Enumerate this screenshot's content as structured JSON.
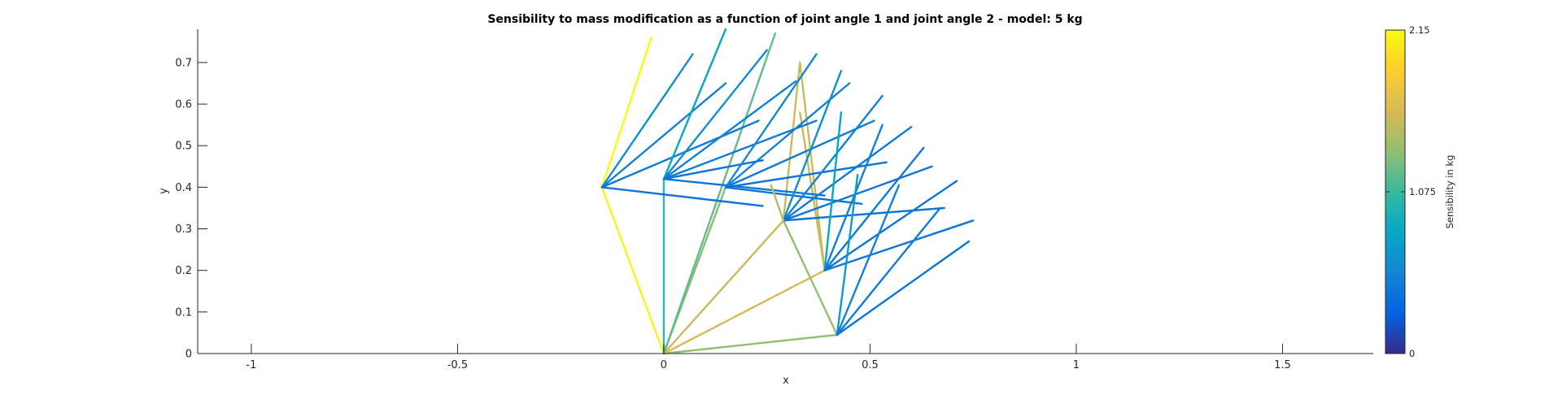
{
  "chart_data": {
    "type": "line",
    "title": "Sensibility to mass modification as a function of joint angle 1 and joint angle 2 - model: 5 kg",
    "xlabel": "x",
    "ylabel": "y",
    "xlim": [
      -1.13,
      1.72
    ],
    "ylim": [
      0,
      0.78
    ],
    "xticks": [
      -1,
      -0.5,
      0,
      0.5,
      1,
      1.5
    ],
    "xtick_labels": [
      "-1",
      "-0.5",
      "0",
      "0.5",
      "1",
      "1.5"
    ],
    "yticks": [
      0,
      0.1,
      0.2,
      0.3,
      0.4,
      0.5,
      0.6,
      0.7
    ],
    "ytick_labels": [
      "0",
      "0.1",
      "0.2",
      "0.3",
      "0.4",
      "0.5",
      "0.6",
      "0.7"
    ],
    "grid": false,
    "colorbar": {
      "label": "Sensibility in kg",
      "min": 0,
      "max": 2.15,
      "ticks": [
        0,
        1.075,
        2.15
      ],
      "tick_labels": [
        "0",
        "1.075",
        "2.15"
      ],
      "colormap": "parula"
    },
    "segments": [
      {
        "x": [
          0,
          -0.15
        ],
        "y": [
          0,
          0.4
        ],
        "v": 2.1
      },
      {
        "x": [
          0,
          0
        ],
        "y": [
          0,
          0.42
        ],
        "v": 1.05
      },
      {
        "x": [
          0,
          0.29
        ],
        "y": [
          0,
          0.32
        ],
        "v": 1.55
      },
      {
        "x": [
          0,
          0.42
        ],
        "y": [
          0,
          0.045
        ],
        "v": 1.35
      },
      {
        "x": [
          0,
          0.39
        ],
        "y": [
          0,
          0.2
        ],
        "v": 1.6
      },
      {
        "x": [
          0,
          0.15
        ],
        "y": [
          0,
          0.4
        ],
        "v": 1.3
      },
      {
        "x": [
          0,
          0.27
        ],
        "y": [
          0,
          0.77
        ],
        "v": 1.2
      },
      {
        "x": [
          0.42,
          0.29
        ],
        "y": [
          0.045,
          0.32
        ],
        "v": 1.35
      },
      {
        "x": [
          0.29,
          0.33
        ],
        "y": [
          0.32,
          0.7
        ],
        "v": 1.55
      },
      {
        "x": [
          0.33,
          0.39
        ],
        "y": [
          0.7,
          0.2
        ],
        "v": 1.55
      },
      {
        "x": [
          0.39,
          0.33
        ],
        "y": [
          0.2,
          0.58
        ],
        "v": 1.55
      },
      {
        "x": [
          -0.15,
          -0.03
        ],
        "y": [
          0.4,
          0.76
        ],
        "v": 2.15
      },
      {
        "x": [
          -0.15,
          0.07
        ],
        "y": [
          0.4,
          0.72
        ],
        "v": 0.6
      },
      {
        "x": [
          -0.15,
          0.15
        ],
        "y": [
          0.4,
          0.65
        ],
        "v": 0.5
      },
      {
        "x": [
          -0.15,
          0.23
        ],
        "y": [
          0.4,
          0.56
        ],
        "v": 0.45
      },
      {
        "x": [
          -0.15,
          0.24
        ],
        "y": [
          0.4,
          0.355
        ],
        "v": 0.4
      },
      {
        "x": [
          0,
          0.15
        ],
        "y": [
          0.42,
          0.78
        ],
        "v": 0.8
      },
      {
        "x": [
          0,
          0.25
        ],
        "y": [
          0.42,
          0.73
        ],
        "v": 0.6
      },
      {
        "x": [
          0,
          0.32
        ],
        "y": [
          0.42,
          0.655
        ],
        "v": 0.5
      },
      {
        "x": [
          0,
          0.37
        ],
        "y": [
          0.42,
          0.56
        ],
        "v": 0.45
      },
      {
        "x": [
          0,
          0.39
        ],
        "y": [
          0.42,
          0.38
        ],
        "v": 0.4
      },
      {
        "x": [
          0,
          0.24
        ],
        "y": [
          0.42,
          0.465
        ],
        "v": 0.4
      },
      {
        "x": [
          0.15,
          0.37
        ],
        "y": [
          0.4,
          0.72
        ],
        "v": 0.55
      },
      {
        "x": [
          0.15,
          0.45
        ],
        "y": [
          0.4,
          0.65
        ],
        "v": 0.5
      },
      {
        "x": [
          0.15,
          0.51
        ],
        "y": [
          0.4,
          0.56
        ],
        "v": 0.45
      },
      {
        "x": [
          0.15,
          0.54
        ],
        "y": [
          0.4,
          0.46
        ],
        "v": 0.4
      },
      {
        "x": [
          0.15,
          0.48
        ],
        "y": [
          0.4,
          0.36
        ],
        "v": 0.4
      },
      {
        "x": [
          0.29,
          0.43
        ],
        "y": [
          0.32,
          0.68
        ],
        "v": 0.6
      },
      {
        "x": [
          0.29,
          0.53
        ],
        "y": [
          0.32,
          0.62
        ],
        "v": 0.5
      },
      {
        "x": [
          0.29,
          0.6
        ],
        "y": [
          0.32,
          0.545
        ],
        "v": 0.45
      },
      {
        "x": [
          0.29,
          0.65
        ],
        "y": [
          0.32,
          0.45
        ],
        "v": 0.4
      },
      {
        "x": [
          0.29,
          0.68
        ],
        "y": [
          0.32,
          0.35
        ],
        "v": 0.4
      },
      {
        "x": [
          0.29,
          0.26
        ],
        "y": [
          0.32,
          0.405
        ],
        "v": 1.5
      },
      {
        "x": [
          0.39,
          0.43
        ],
        "y": [
          0.2,
          0.58
        ],
        "v": 0.8
      },
      {
        "x": [
          0.39,
          0.53
        ],
        "y": [
          0.2,
          0.55
        ],
        "v": 0.5
      },
      {
        "x": [
          0.39,
          0.63
        ],
        "y": [
          0.2,
          0.495
        ],
        "v": 0.45
      },
      {
        "x": [
          0.39,
          0.71
        ],
        "y": [
          0.2,
          0.415
        ],
        "v": 0.4
      },
      {
        "x": [
          0.39,
          0.75
        ],
        "y": [
          0.2,
          0.32
        ],
        "v": 0.4
      },
      {
        "x": [
          0.42,
          0.47
        ],
        "y": [
          0.045,
          0.43
        ],
        "v": 0.7
      },
      {
        "x": [
          0.42,
          0.57
        ],
        "y": [
          0.045,
          0.405
        ],
        "v": 0.5
      },
      {
        "x": [
          0.42,
          0.67
        ],
        "y": [
          0.045,
          0.35
        ],
        "v": 0.45
      },
      {
        "x": [
          0.42,
          0.74
        ],
        "y": [
          0.045,
          0.27
        ],
        "v": 0.4
      }
    ]
  }
}
